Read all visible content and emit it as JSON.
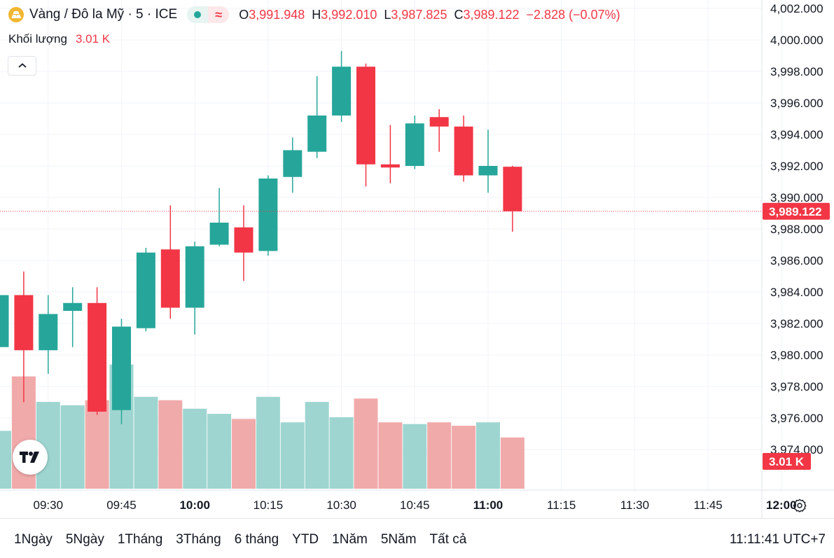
{
  "header": {
    "title": "Vàng / Đô la Mỹ · 5 · ICE",
    "ohlc": [
      {
        "key": "O",
        "value": "3,991.948"
      },
      {
        "key": "H",
        "value": "3,992.010"
      },
      {
        "key": "L",
        "value": "3,987.825"
      },
      {
        "key": "C",
        "value": "3,989.122"
      }
    ],
    "change": "−2.828 (−0.07%)"
  },
  "volume_legend": {
    "label": "Khối lượng",
    "value": "3.01 K"
  },
  "price_label": "3,989.122",
  "volume_label": "3.01 K",
  "bottom": {
    "ranges": [
      "1Ngày",
      "5Ngày",
      "1Tháng",
      "3Tháng",
      "6 tháng",
      "YTD",
      "1Năm",
      "5Năm",
      "Tất cả"
    ],
    "clock": "11:11:41 UTC+7"
  },
  "colors": {
    "up": "#26a69a",
    "down": "#f23645",
    "up_vol": "#9ed5d0",
    "down_vol": "#f1aaaa",
    "grid": "#f0f3fa"
  },
  "chart_data": {
    "type": "candlestick",
    "symbol": "XAUUSD",
    "interval": "5 min",
    "ylim": [
      3972.4,
      4002.4
    ],
    "y_ticks": [
      "4,002.000",
      "4,000.000",
      "3,998.000",
      "3,996.000",
      "3,994.000",
      "3,992.000",
      "3,990.000",
      "3,988.000",
      "3,986.000",
      "3,984.000",
      "3,982.000",
      "3,980.000",
      "3,978.000",
      "3,976.000",
      "3,974.000"
    ],
    "x_ticks": [
      {
        "label": "09:30",
        "bold": false
      },
      {
        "label": "09:45",
        "bold": false
      },
      {
        "label": "10:00",
        "bold": true
      },
      {
        "label": "10:15",
        "bold": false
      },
      {
        "label": "10:30",
        "bold": false
      },
      {
        "label": "10:45",
        "bold": false
      },
      {
        "label": "11:00",
        "bold": true
      },
      {
        "label": "11:15",
        "bold": false
      },
      {
        "label": "11:30",
        "bold": false
      },
      {
        "label": "11:45",
        "bold": false
      },
      {
        "label": "12:00",
        "bold": true
      }
    ],
    "last_price": 3989.122,
    "candles": [
      {
        "time": "09:20",
        "open": 3980.5,
        "high": 3984.3,
        "low": 3979.0,
        "close": 3983.8
      },
      {
        "time": "09:25",
        "open": 3983.8,
        "high": 3985.3,
        "low": 3977.0,
        "close": 3980.3
      },
      {
        "time": "09:30",
        "open": 3980.3,
        "high": 3983.8,
        "low": 3978.8,
        "close": 3982.6
      },
      {
        "time": "09:35",
        "open": 3982.8,
        "high": 3984.3,
        "low": 3980.5,
        "close": 3983.3
      },
      {
        "time": "09:40",
        "open": 3983.3,
        "high": 3984.3,
        "low": 3976.2,
        "close": 3976.4
      },
      {
        "time": "09:45",
        "open": 3976.5,
        "high": 3982.3,
        "low": 3975.6,
        "close": 3981.8
      },
      {
        "time": "09:50",
        "open": 3981.7,
        "high": 3986.8,
        "low": 3981.5,
        "close": 3986.5
      },
      {
        "time": "09:55",
        "open": 3986.7,
        "high": 3989.5,
        "low": 3982.3,
        "close": 3983.0
      },
      {
        "time": "10:00",
        "open": 3983.0,
        "high": 3987.2,
        "low": 3981.3,
        "close": 3986.9
      },
      {
        "time": "10:05",
        "open": 3987.0,
        "high": 3990.6,
        "low": 3986.9,
        "close": 3988.4
      },
      {
        "time": "10:10",
        "open": 3988.1,
        "high": 3989.5,
        "low": 3984.7,
        "close": 3986.5
      },
      {
        "time": "10:15",
        "open": 3986.6,
        "high": 3991.4,
        "low": 3986.3,
        "close": 3991.2
      },
      {
        "time": "10:20",
        "open": 3991.3,
        "high": 3993.8,
        "low": 3990.3,
        "close": 3993.0
      },
      {
        "time": "10:25",
        "open": 3992.9,
        "high": 3997.7,
        "low": 3992.5,
        "close": 3995.2
      },
      {
        "time": "10:30",
        "open": 3995.2,
        "high": 3999.3,
        "low": 3994.8,
        "close": 3998.3
      },
      {
        "time": "10:35",
        "open": 3998.3,
        "high": 3998.5,
        "low": 3990.7,
        "close": 3992.1
      },
      {
        "time": "10:40",
        "open": 3992.1,
        "high": 3994.6,
        "low": 3990.9,
        "close": 3991.9
      },
      {
        "time": "10:45",
        "open": 3992.0,
        "high": 3995.2,
        "low": 3991.8,
        "close": 3994.7
      },
      {
        "time": "10:50",
        "open": 3995.1,
        "high": 3995.6,
        "low": 3992.9,
        "close": 3994.5
      },
      {
        "time": "10:55",
        "open": 3994.5,
        "high": 3995.2,
        "low": 3991.0,
        "close": 3991.4
      },
      {
        "time": "11:00",
        "open": 3991.4,
        "high": 3994.3,
        "low": 3990.3,
        "close": 3992.0
      },
      {
        "time": "11:05",
        "open": 3991.948,
        "high": 3992.01,
        "low": 3987.825,
        "close": 3989.122
      }
    ],
    "volume_unit": "K",
    "volumes": [
      3.4,
      6.6,
      5.1,
      4.9,
      5.2,
      7.3,
      5.4,
      5.2,
      4.7,
      4.4,
      4.1,
      5.4,
      3.9,
      5.1,
      4.2,
      5.3,
      3.9,
      3.8,
      3.9,
      3.7,
      3.9,
      3.01
    ]
  }
}
